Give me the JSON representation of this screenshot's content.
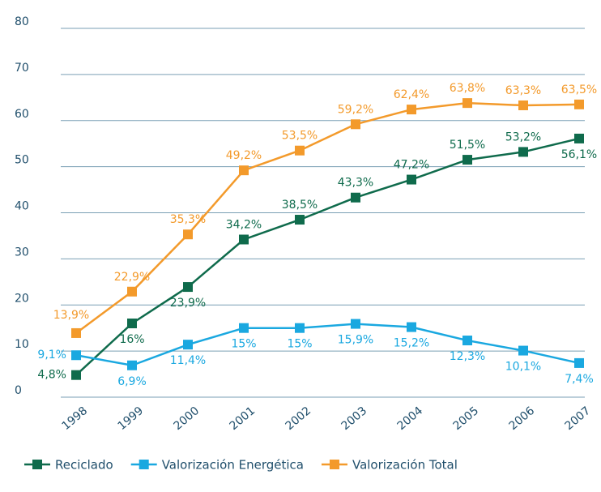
{
  "chart_data": {
    "type": "line",
    "categories": [
      "1998",
      "1999",
      "2000",
      "2001",
      "2002",
      "2003",
      "2004",
      "2005",
      "2006",
      "2007"
    ],
    "series": [
      {
        "name": "Reciclado",
        "color": "#0f6b4c",
        "values": [
          4.8,
          16,
          23.9,
          34.2,
          38.5,
          43.3,
          47.2,
          51.5,
          53.2,
          56.1
        ],
        "value_labels": [
          "4,8%",
          "16%",
          "23,9%",
          "34,2%",
          "38,5%",
          "43,3%",
          "47,2%",
          "51,5%",
          "53,2%",
          "56,1%"
        ]
      },
      {
        "name": "Valorización Energética",
        "color": "#1aa8e0",
        "values": [
          9.1,
          6.9,
          11.4,
          15,
          15,
          15.9,
          15.2,
          12.3,
          10.1,
          7.4
        ],
        "value_labels": [
          "9,1%",
          "6,9%",
          "11,4%",
          "15%",
          "15%",
          "15,9%",
          "15,2%",
          "12,3%",
          "10,1%",
          "7,4%"
        ]
      },
      {
        "name": "Valorización Total",
        "color": "#f39a2b",
        "values": [
          13.9,
          22.9,
          35.3,
          49.2,
          53.5,
          59.2,
          62.4,
          63.8,
          63.3,
          63.5
        ],
        "value_labels": [
          "13,9%",
          "22,9%",
          "35,3%",
          "49,2%",
          "53,5%",
          "59,2%",
          "62,4%",
          "63,8%",
          "63,3%",
          "63,5%"
        ]
      }
    ],
    "ylim": [
      0,
      80
    ],
    "yticks": [
      0,
      10,
      20,
      30,
      40,
      50,
      60,
      70,
      80
    ],
    "grid": true,
    "legend": "bottom"
  }
}
